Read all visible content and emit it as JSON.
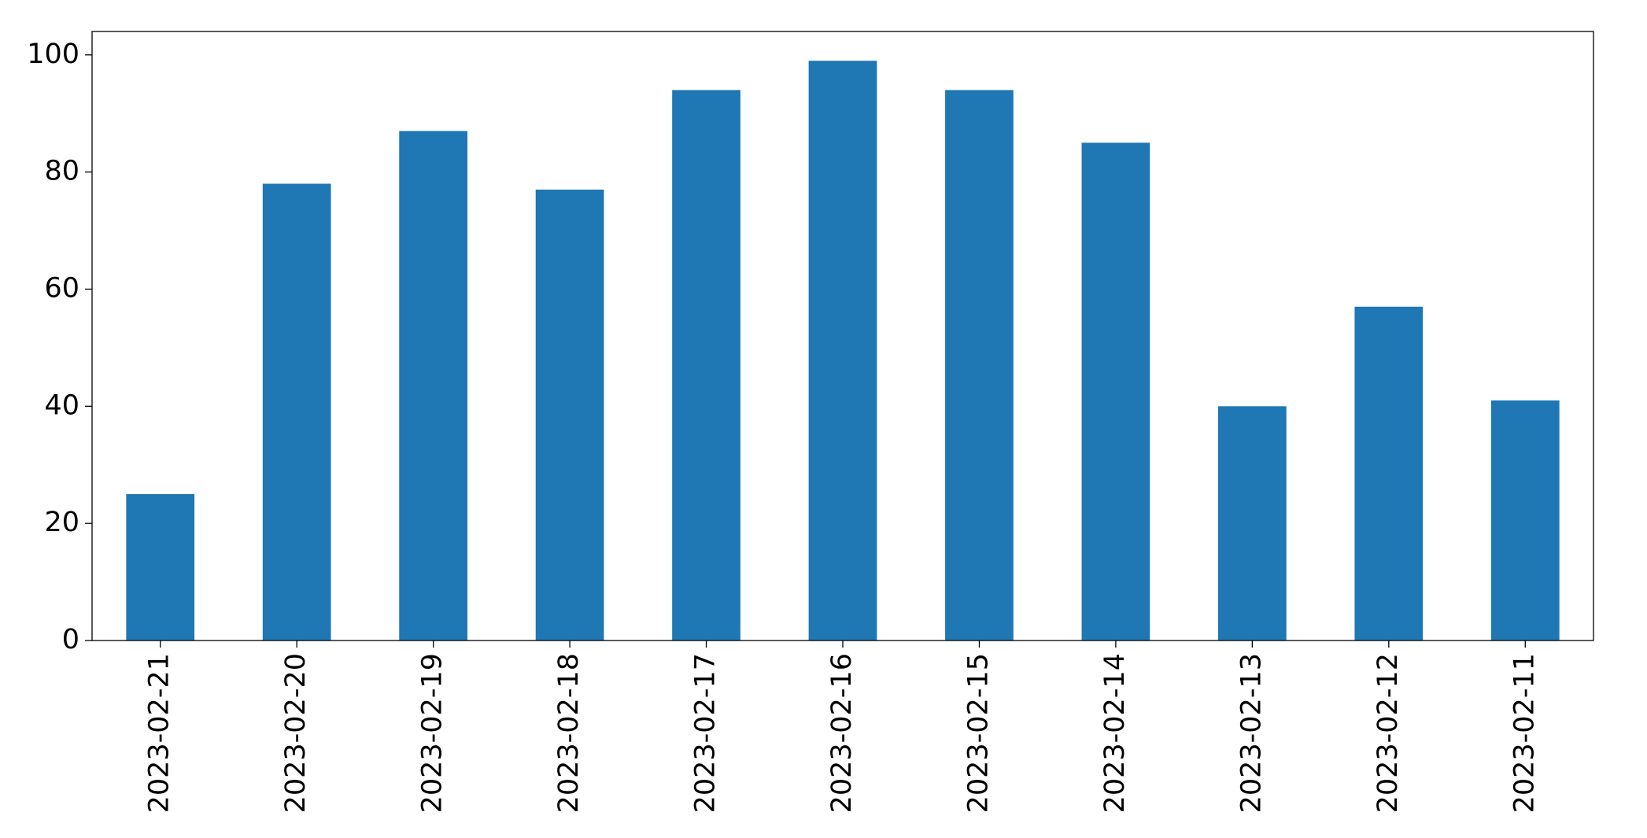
{
  "chart_data": {
    "type": "bar",
    "categories": [
      "2023-02-21",
      "2023-02-20",
      "2023-02-19",
      "2023-02-18",
      "2023-02-17",
      "2023-02-16",
      "2023-02-15",
      "2023-02-14",
      "2023-02-13",
      "2023-02-12",
      "2023-02-11"
    ],
    "values": [
      25,
      78,
      87,
      77,
      94,
      99,
      94,
      85,
      40,
      57,
      41
    ],
    "color": "#1f77b4",
    "ylim": [
      0,
      104
    ],
    "yticks": [
      0,
      20,
      40,
      60,
      80,
      100
    ],
    "grid": false
  }
}
